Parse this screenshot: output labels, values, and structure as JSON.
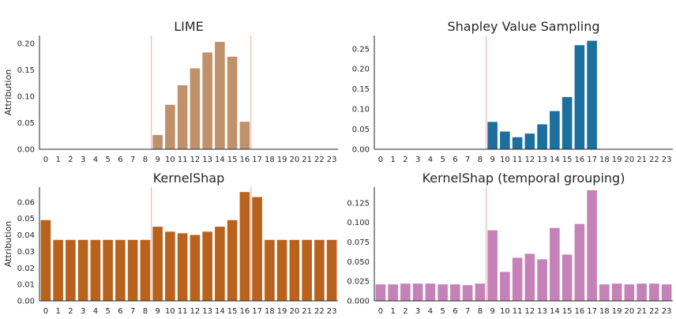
{
  "chart_data": [
    {
      "type": "bar",
      "title": "LIME",
      "xlabel": "",
      "ylabel": "Attribution",
      "color": "#bf926b",
      "categories": [
        "0",
        "1",
        "2",
        "3",
        "4",
        "5",
        "6",
        "7",
        "8",
        "9",
        "10",
        "11",
        "12",
        "13",
        "14",
        "15",
        "16",
        "17",
        "18",
        "19",
        "20",
        "21",
        "22",
        "23"
      ],
      "values": [
        0,
        0,
        0,
        0,
        0,
        0,
        0,
        0,
        0,
        0.027,
        0.084,
        0.121,
        0.153,
        0.183,
        0.203,
        0.175,
        0.052,
        0,
        0,
        0,
        0,
        0,
        0,
        0
      ],
      "ylim": [
        0,
        0.215
      ],
      "yticks": [
        0.0,
        0.05,
        0.1,
        0.15,
        0.2
      ],
      "ytick_labels": [
        "0.00",
        "0.05",
        "0.10",
        "0.15",
        "0.20"
      ],
      "vlines": [
        8.5,
        16.5
      ],
      "vline_color": "#e8a8a0",
      "grid": false
    },
    {
      "type": "bar",
      "title": "Shapley Value Sampling",
      "xlabel": "",
      "ylabel": "",
      "color": "#1d6f9d",
      "categories": [
        "0",
        "1",
        "2",
        "3",
        "4",
        "5",
        "6",
        "7",
        "8",
        "9",
        "10",
        "11",
        "12",
        "13",
        "14",
        "15",
        "16",
        "17",
        "18",
        "19",
        "20",
        "21",
        "22",
        "23"
      ],
      "values": [
        0,
        0,
        0,
        0,
        0,
        0,
        0,
        0,
        0,
        0.068,
        0.044,
        0.03,
        0.039,
        0.062,
        0.095,
        0.13,
        0.259,
        0.27,
        0,
        0,
        0,
        0,
        0,
        0
      ],
      "ylim": [
        0,
        0.283
      ],
      "yticks": [
        0.0,
        0.05,
        0.1,
        0.15,
        0.2,
        0.25
      ],
      "ytick_labels": [
        "0.00",
        "0.05",
        "0.10",
        "0.15",
        "0.20",
        "0.25"
      ],
      "vlines": [
        8.5
      ],
      "vline_color": "#e8a8a0",
      "grid": false
    },
    {
      "type": "bar",
      "title": "KernelShap",
      "xlabel": "",
      "ylabel": "Attribution",
      "color": "#b8621e",
      "categories": [
        "0",
        "1",
        "2",
        "3",
        "4",
        "5",
        "6",
        "7",
        "8",
        "9",
        "10",
        "11",
        "12",
        "13",
        "14",
        "15",
        "16",
        "17",
        "18",
        "19",
        "20",
        "21",
        "22",
        "23"
      ],
      "values": [
        0.049,
        0.037,
        0.037,
        0.037,
        0.037,
        0.037,
        0.037,
        0.037,
        0.037,
        0.045,
        0.042,
        0.041,
        0.04,
        0.042,
        0.045,
        0.049,
        0.066,
        0.063,
        0.037,
        0.037,
        0.037,
        0.037,
        0.037,
        0.037
      ],
      "ylim": [
        0,
        0.069
      ],
      "yticks": [
        0.0,
        0.01,
        0.02,
        0.03,
        0.04,
        0.05,
        0.06
      ],
      "ytick_labels": [
        "0.00",
        "0.01",
        "0.02",
        "0.03",
        "0.04",
        "0.05",
        "0.06"
      ],
      "vlines": [
        8.5,
        16.5
      ],
      "vline_color": "#e8a8a0",
      "grid": false
    },
    {
      "type": "bar",
      "title": "KernelShap (temporal grouping)",
      "xlabel": "",
      "ylabel": "",
      "color": "#c582b8",
      "categories": [
        "0",
        "1",
        "2",
        "3",
        "4",
        "5",
        "6",
        "7",
        "8",
        "9",
        "10",
        "11",
        "12",
        "13",
        "14",
        "15",
        "16",
        "17",
        "18",
        "19",
        "20",
        "21",
        "22",
        "23"
      ],
      "values": [
        0.021,
        0.021,
        0.022,
        0.022,
        0.022,
        0.021,
        0.021,
        0.02,
        0.022,
        0.09,
        0.037,
        0.055,
        0.06,
        0.053,
        0.093,
        0.059,
        0.098,
        0.141,
        0.021,
        0.022,
        0.021,
        0.022,
        0.022,
        0.021
      ],
      "ylim": [
        0,
        0.145
      ],
      "yticks": [
        0.0,
        0.025,
        0.05,
        0.075,
        0.1,
        0.125
      ],
      "ytick_labels": [
        "0.000",
        "0.025",
        "0.050",
        "0.075",
        "0.100",
        "0.125"
      ],
      "vlines": [
        8.5
      ],
      "vline_color": "#e8a8a0",
      "grid": false
    }
  ]
}
